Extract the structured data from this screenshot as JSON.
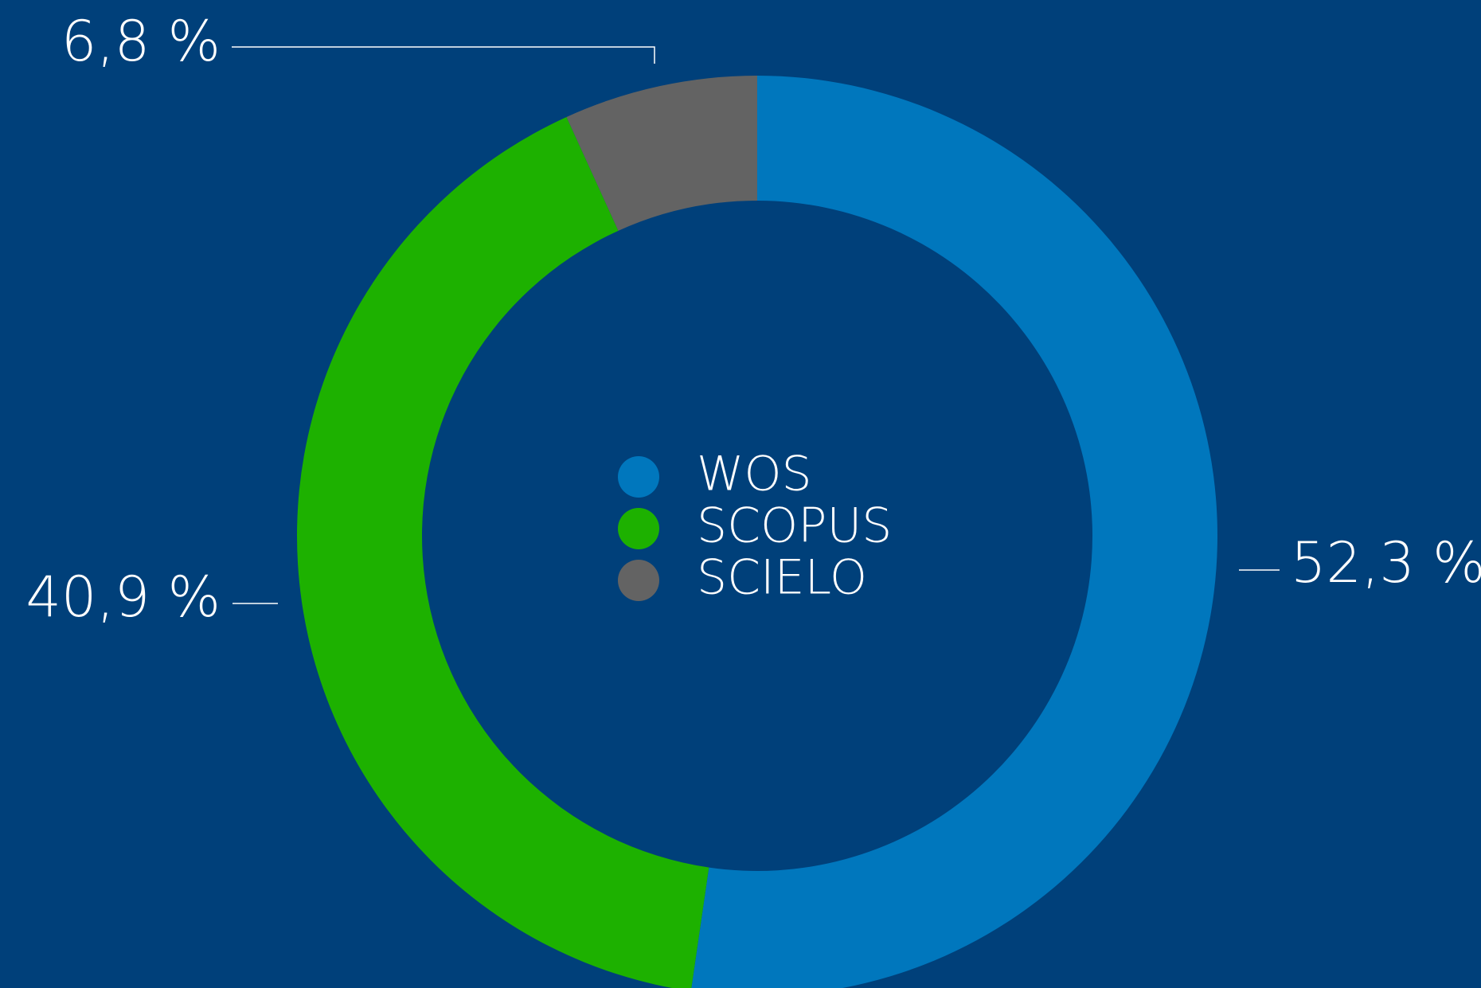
{
  "chart_data": {
    "type": "donut",
    "categories": [
      "WOS",
      "SCOPUS",
      "SCIELO"
    ],
    "values": [
      52.3,
      40.9,
      6.8
    ],
    "value_labels": [
      "52,3 %",
      "40,9 %",
      "6,8 %"
    ],
    "colors": [
      "#0077bd",
      "#1db100",
      "#636363"
    ],
    "legend": "center"
  }
}
